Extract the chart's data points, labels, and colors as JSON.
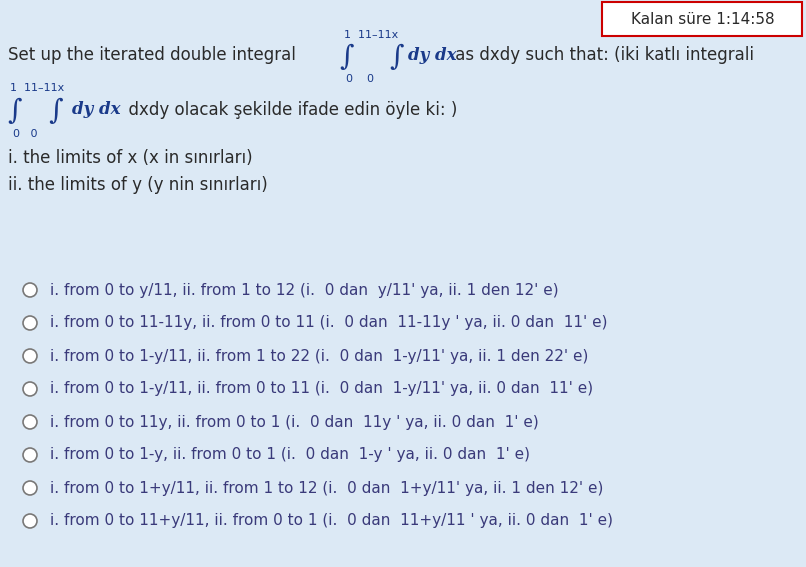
{
  "bg_color": "#dce9f5",
  "timer_text": "Kalan süre 1:14:58",
  "timer_bg": "#ffffff",
  "timer_border": "#cc0000",
  "text_color": "#2a2a2a",
  "option_color": "#3a3a7a",
  "integral_color": "#1a3a8a",
  "subq_i": "i. the limits of x (x in sınırları)",
  "subq_ii": "ii. the limits of y (y nin sınırları)",
  "options": [
    "i. from 0 to y/11, ii. from 1 to 12 (i.  0 dan  y/11' ya, ii. 1 den 12' e)",
    "i. from 0 to 11-11y, ii. from 0 to 11 (i.  0 dan  11-11y ' ya, ii. 0 dan  11' e)",
    "i. from 0 to 1-y/11, ii. from 1 to 22 (i.  0 dan  1-y/11' ya, ii. 1 den 22' e)",
    "i. from 0 to 1-y/11, ii. from 0 to 11 (i.  0 dan  1-y/11' ya, ii. 0 dan  11' e)",
    "i. from 0 to 11y, ii. from 0 to 1 (i.  0 dan  11y ' ya, ii. 0 dan  1' e)",
    "i. from 0 to 1-y, ii. from 0 to 1 (i.  0 dan  1-y ' ya, ii. 0 dan  1' e)",
    "i. from 0 to 1+y/11, ii. from 1 to 12 (i.  0 dan  1+y/11' ya, ii. 1 den 12' e)",
    "i. from 0 to 11+y/11, ii. from 0 to 1 (i.  0 dan  11+y/11 ' ya, ii. 0 dan  1' e)"
  ],
  "fs_main": 12,
  "fs_small": 8,
  "fs_integral": 20,
  "fs_option": 11
}
